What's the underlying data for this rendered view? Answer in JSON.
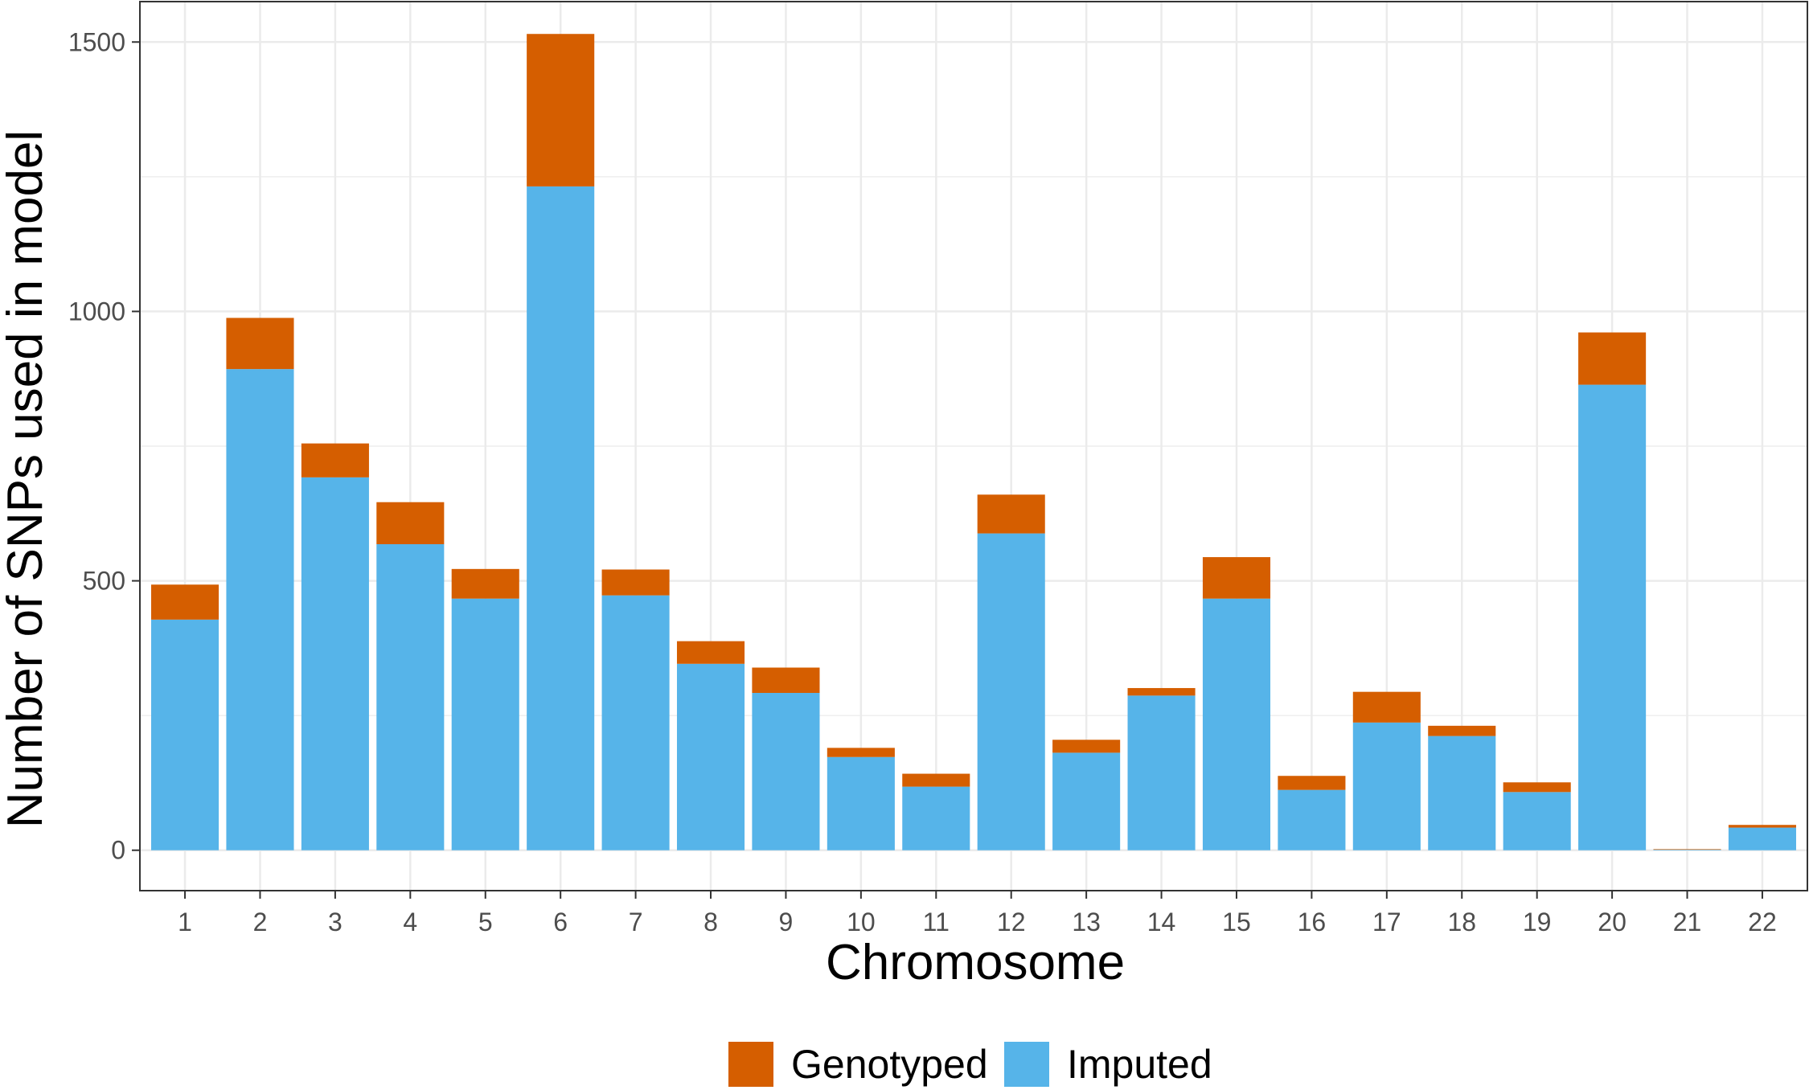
{
  "chart_data": {
    "type": "bar",
    "stacked": true,
    "title": "",
    "xlabel": "Chromosome",
    "ylabel": "Number of SNPs used in model",
    "ylim": [
      -75,
      1575
    ],
    "yticks": [
      0,
      500,
      1000,
      1500
    ],
    "grid": true,
    "legend_position": "bottom",
    "categories": [
      "1",
      "2",
      "3",
      "4",
      "5",
      "6",
      "7",
      "8",
      "9",
      "10",
      "11",
      "12",
      "13",
      "14",
      "15",
      "16",
      "17",
      "18",
      "19",
      "20",
      "21",
      "22"
    ],
    "series": [
      {
        "name": "Imputed",
        "color": "#56B4E9",
        "values": [
          428,
          893,
          692,
          568,
          467,
          1232,
          473,
          346,
          292,
          173,
          118,
          588,
          181,
          287,
          467,
          112,
          237,
          212,
          108,
          864,
          1,
          42
        ]
      },
      {
        "name": "Genotyped",
        "color": "#D55E00",
        "values": [
          65,
          95,
          63,
          78,
          55,
          283,
          48,
          42,
          47,
          17,
          24,
          72,
          24,
          14,
          77,
          26,
          57,
          19,
          18,
          97,
          1,
          5
        ]
      }
    ],
    "legend": [
      {
        "label": "Genotyped",
        "color": "#D55E00"
      },
      {
        "label": "Imputed",
        "color": "#56B4E9"
      }
    ]
  }
}
